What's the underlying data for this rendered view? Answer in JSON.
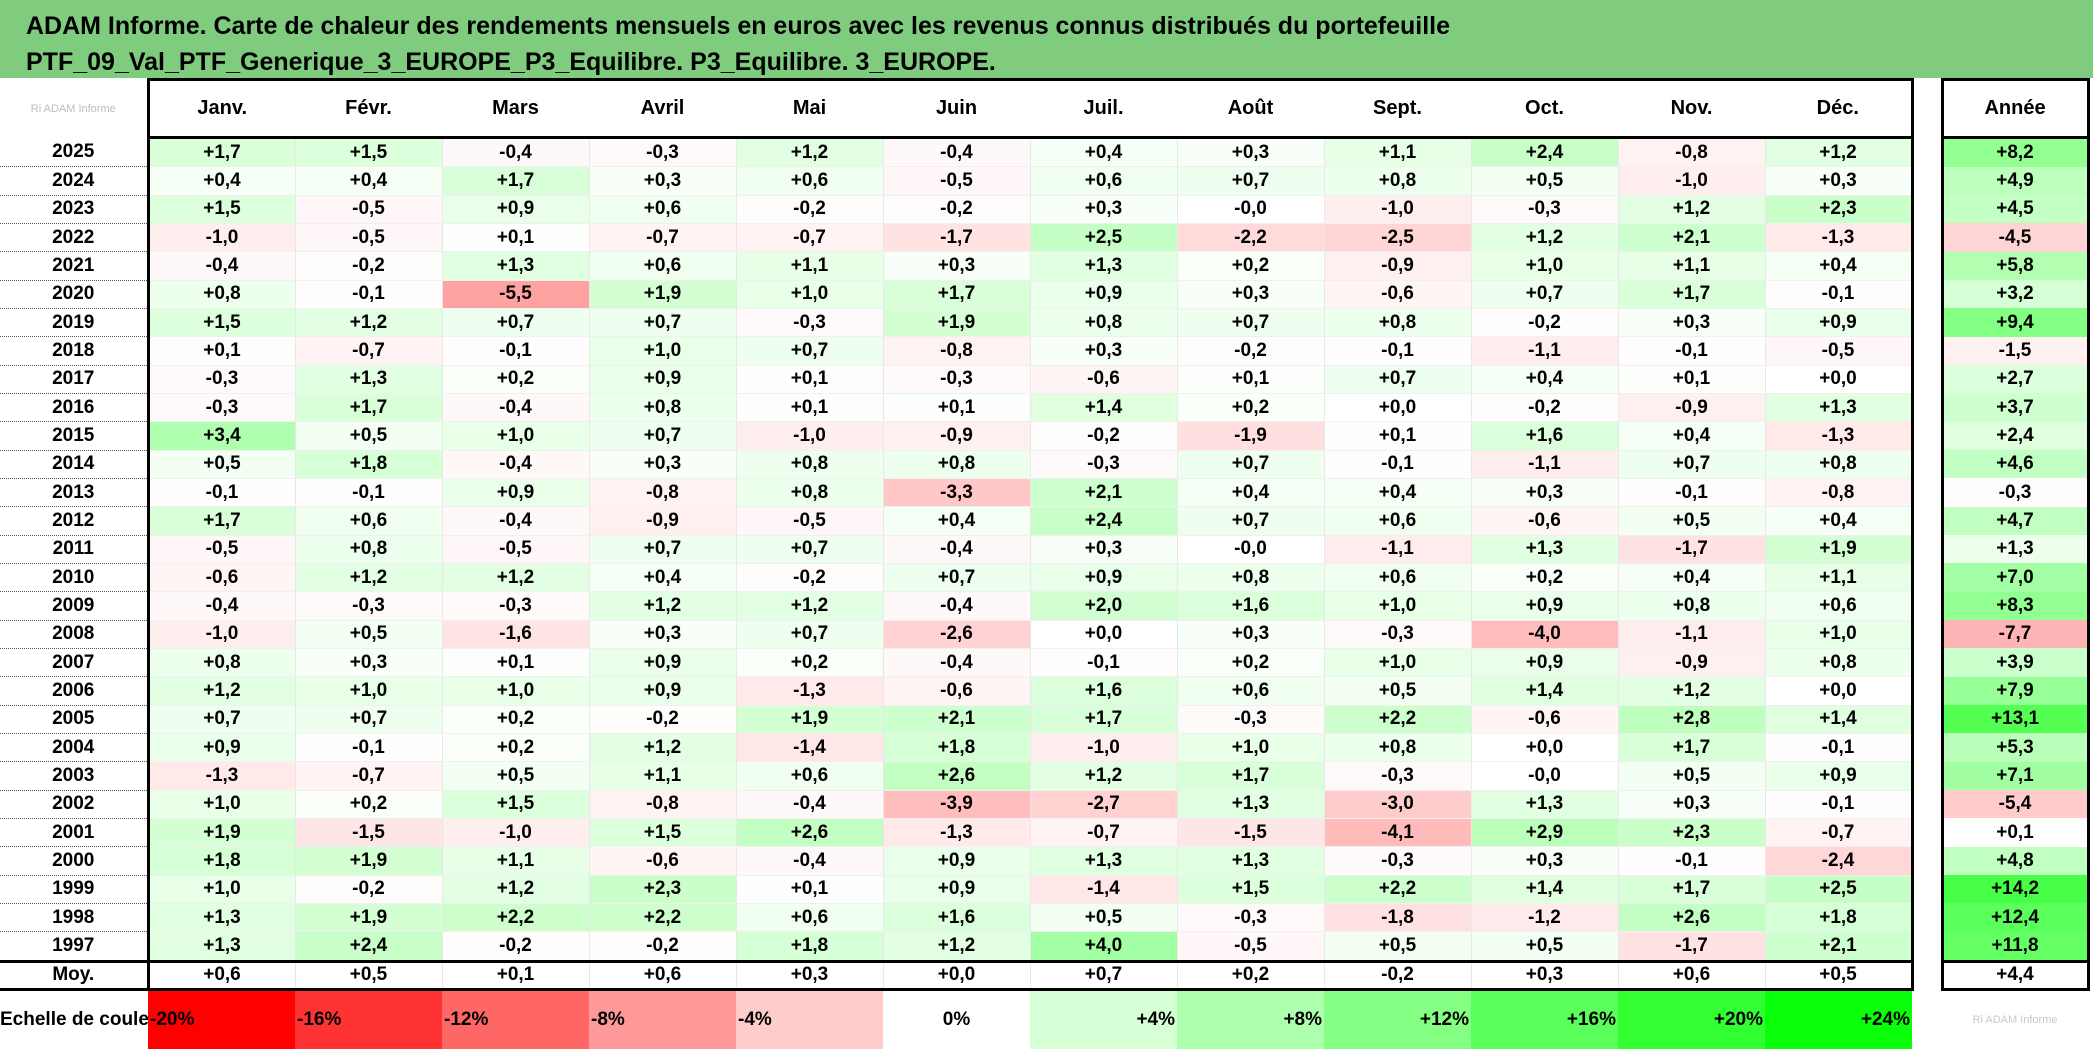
{
  "title_lines": [
    "ADAM Informe. Carte de chaleur des rendements mensuels en euros avec les revenus connus distribués du portefeuille",
    "PTF_09_Val_PTF_Generique_3_EUROPE_P3_Equilibre. P3_Equilibre. 3_EUROPE."
  ],
  "corner_text": "Ri ADAM Informe",
  "chart_data": {
    "type": "heatmap",
    "columns": [
      "Janv.",
      "Févr.",
      "Mars",
      "Avril",
      "Mai",
      "Juin",
      "Juil.",
      "Août",
      "Sept.",
      "Oct.",
      "Nov.",
      "Déc."
    ],
    "annual_label": "Année",
    "rows": [
      {
        "year": "2025",
        "values": [
          "+1,7",
          "+1,5",
          "-0,4",
          "-0,3",
          "+1,2",
          "-0,4",
          "+0,4",
          "+0,3",
          "+1,1",
          "+2,4",
          "-0,8",
          "+1,2"
        ],
        "annual": "+8,2"
      },
      {
        "year": "2024",
        "values": [
          "+0,4",
          "+0,4",
          "+1,7",
          "+0,3",
          "+0,6",
          "-0,5",
          "+0,6",
          "+0,7",
          "+0,8",
          "+0,5",
          "-1,0",
          "+0,3"
        ],
        "annual": "+4,9"
      },
      {
        "year": "2023",
        "values": [
          "+1,5",
          "-0,5",
          "+0,9",
          "+0,6",
          "-0,2",
          "-0,2",
          "+0,3",
          "-0,0",
          "-1,0",
          "-0,3",
          "+1,2",
          "+2,3"
        ],
        "annual": "+4,5"
      },
      {
        "year": "2022",
        "values": [
          "-1,0",
          "-0,5",
          "+0,1",
          "-0,7",
          "-0,7",
          "-1,7",
          "+2,5",
          "-2,2",
          "-2,5",
          "+1,2",
          "+2,1",
          "-1,3"
        ],
        "annual": "-4,5"
      },
      {
        "year": "2021",
        "values": [
          "-0,4",
          "-0,2",
          "+1,3",
          "+0,6",
          "+1,1",
          "+0,3",
          "+1,3",
          "+0,2",
          "-0,9",
          "+1,0",
          "+1,1",
          "+0,4"
        ],
        "annual": "+5,8"
      },
      {
        "year": "2020",
        "values": [
          "+0,8",
          "-0,1",
          "-5,5",
          "+1,9",
          "+1,0",
          "+1,7",
          "+0,9",
          "+0,3",
          "-0,6",
          "+0,7",
          "+1,7",
          "-0,1"
        ],
        "annual": "+3,2"
      },
      {
        "year": "2019",
        "values": [
          "+1,5",
          "+1,2",
          "+0,7",
          "+0,7",
          "-0,3",
          "+1,9",
          "+0,8",
          "+0,7",
          "+0,8",
          "-0,2",
          "+0,3",
          "+0,9"
        ],
        "annual": "+9,4"
      },
      {
        "year": "2018",
        "values": [
          "+0,1",
          "-0,7",
          "-0,1",
          "+1,0",
          "+0,7",
          "-0,8",
          "+0,3",
          "-0,2",
          "-0,1",
          "-1,1",
          "-0,1",
          "-0,5"
        ],
        "annual": "-1,5"
      },
      {
        "year": "2017",
        "values": [
          "-0,3",
          "+1,3",
          "+0,2",
          "+0,9",
          "+0,1",
          "-0,3",
          "-0,6",
          "+0,1",
          "+0,7",
          "+0,4",
          "+0,1",
          "+0,0"
        ],
        "annual": "+2,7"
      },
      {
        "year": "2016",
        "values": [
          "-0,3",
          "+1,7",
          "-0,4",
          "+0,8",
          "+0,1",
          "+0,1",
          "+1,4",
          "+0,2",
          "+0,0",
          "-0,2",
          "-0,9",
          "+1,3"
        ],
        "annual": "+3,7"
      },
      {
        "year": "2015",
        "values": [
          "+3,4",
          "+0,5",
          "+1,0",
          "+0,7",
          "-1,0",
          "-0,9",
          "-0,2",
          "-1,9",
          "+0,1",
          "+1,6",
          "+0,4",
          "-1,3"
        ],
        "annual": "+2,4"
      },
      {
        "year": "2014",
        "values": [
          "+0,5",
          "+1,8",
          "-0,4",
          "+0,3",
          "+0,8",
          "+0,8",
          "-0,3",
          "+0,7",
          "-0,1",
          "-1,1",
          "+0,7",
          "+0,8"
        ],
        "annual": "+4,6"
      },
      {
        "year": "2013",
        "values": [
          "-0,1",
          "-0,1",
          "+0,9",
          "-0,8",
          "+0,8",
          "-3,3",
          "+2,1",
          "+0,4",
          "+0,4",
          "+0,3",
          "-0,1",
          "-0,8"
        ],
        "annual": "-0,3"
      },
      {
        "year": "2012",
        "values": [
          "+1,7",
          "+0,6",
          "-0,4",
          "-0,9",
          "-0,5",
          "+0,4",
          "+2,4",
          "+0,7",
          "+0,6",
          "-0,6",
          "+0,5",
          "+0,4"
        ],
        "annual": "+4,7"
      },
      {
        "year": "2011",
        "values": [
          "-0,5",
          "+0,8",
          "-0,5",
          "+0,7",
          "+0,7",
          "-0,4",
          "+0,3",
          "-0,0",
          "-1,1",
          "+1,3",
          "-1,7",
          "+1,9"
        ],
        "annual": "+1,3"
      },
      {
        "year": "2010",
        "values": [
          "-0,6",
          "+1,2",
          "+1,2",
          "+0,4",
          "-0,2",
          "+0,7",
          "+0,9",
          "+0,8",
          "+0,6",
          "+0,2",
          "+0,4",
          "+1,1"
        ],
        "annual": "+7,0"
      },
      {
        "year": "2009",
        "values": [
          "-0,4",
          "-0,3",
          "-0,3",
          "+1,2",
          "+1,2",
          "-0,4",
          "+2,0",
          "+1,6",
          "+1,0",
          "+0,9",
          "+0,8",
          "+0,6"
        ],
        "annual": "+8,3"
      },
      {
        "year": "2008",
        "values": [
          "-1,0",
          "+0,5",
          "-1,6",
          "+0,3",
          "+0,7",
          "-2,6",
          "+0,0",
          "+0,3",
          "-0,3",
          "-4,0",
          "-1,1",
          "+1,0"
        ],
        "annual": "-7,7"
      },
      {
        "year": "2007",
        "values": [
          "+0,8",
          "+0,3",
          "+0,1",
          "+0,9",
          "+0,2",
          "-0,4",
          "-0,1",
          "+0,2",
          "+1,0",
          "+0,9",
          "-0,9",
          "+0,8"
        ],
        "annual": "+3,9"
      },
      {
        "year": "2006",
        "values": [
          "+1,2",
          "+1,0",
          "+1,0",
          "+0,9",
          "-1,3",
          "-0,6",
          "+1,6",
          "+0,6",
          "+0,5",
          "+1,4",
          "+1,2",
          "+0,0"
        ],
        "annual": "+7,9"
      },
      {
        "year": "2005",
        "values": [
          "+0,7",
          "+0,7",
          "+0,2",
          "-0,2",
          "+1,9",
          "+2,1",
          "+1,7",
          "-0,3",
          "+2,2",
          "-0,6",
          "+2,8",
          "+1,4"
        ],
        "annual": "+13,1"
      },
      {
        "year": "2004",
        "values": [
          "+0,9",
          "-0,1",
          "+0,2",
          "+1,2",
          "-1,4",
          "+1,8",
          "-1,0",
          "+1,0",
          "+0,8",
          "+0,0",
          "+1,7",
          "-0,1"
        ],
        "annual": "+5,3"
      },
      {
        "year": "2003",
        "values": [
          "-1,3",
          "-0,7",
          "+0,5",
          "+1,1",
          "+0,6",
          "+2,6",
          "+1,2",
          "+1,7",
          "-0,3",
          "-0,0",
          "+0,5",
          "+0,9"
        ],
        "annual": "+7,1"
      },
      {
        "year": "2002",
        "values": [
          "+1,0",
          "+0,2",
          "+1,5",
          "-0,8",
          "-0,4",
          "-3,9",
          "-2,7",
          "+1,3",
          "-3,0",
          "+1,3",
          "+0,3",
          "-0,1"
        ],
        "annual": "-5,4"
      },
      {
        "year": "2001",
        "values": [
          "+1,9",
          "-1,5",
          "-1,0",
          "+1,5",
          "+2,6",
          "-1,3",
          "-0,7",
          "-1,5",
          "-4,1",
          "+2,9",
          "+2,3",
          "-0,7"
        ],
        "annual": "+0,1"
      },
      {
        "year": "2000",
        "values": [
          "+1,8",
          "+1,9",
          "+1,1",
          "-0,6",
          "-0,4",
          "+0,9",
          "+1,3",
          "+1,3",
          "-0,3",
          "+0,3",
          "-0,1",
          "-2,4"
        ],
        "annual": "+4,8"
      },
      {
        "year": "1999",
        "values": [
          "+1,0",
          "-0,2",
          "+1,2",
          "+2,3",
          "+0,1",
          "+0,9",
          "-1,4",
          "+1,5",
          "+2,2",
          "+1,4",
          "+1,7",
          "+2,5"
        ],
        "annual": "+14,2"
      },
      {
        "year": "1998",
        "values": [
          "+1,3",
          "+1,9",
          "+2,2",
          "+2,2",
          "+0,6",
          "+1,6",
          "+0,5",
          "-0,3",
          "-1,8",
          "-1,2",
          "+2,6",
          "+1,8"
        ],
        "annual": "+12,4"
      },
      {
        "year": "1997",
        "values": [
          "+1,3",
          "+2,4",
          "-0,2",
          "-0,2",
          "+1,8",
          "+1,2",
          "+4,0",
          "-0,5",
          "+0,5",
          "+0,5",
          "-1,7",
          "+2,1"
        ],
        "annual": "+11,8"
      }
    ],
    "average": {
      "label": "Moy.",
      "values": [
        "+0,6",
        "+0,5",
        "+0,1",
        "+0,6",
        "+0,3",
        "+0,0",
        "+0,7",
        "+0,2",
        "-0,2",
        "+0,3",
        "+0,6",
        "+0,5"
      ],
      "annual": "+4,4"
    },
    "color_scale": {
      "label": "Echelle de couleur",
      "stops": [
        {
          "label": "-20%",
          "value": -20,
          "color": "#ff0000"
        },
        {
          "label": "-16%",
          "value": -16,
          "color": "#ff3333"
        },
        {
          "label": "-12%",
          "value": -12,
          "color": "#ff6666"
        },
        {
          "label": "-8%",
          "value": -8,
          "color": "#ff9999"
        },
        {
          "label": "-4%",
          "value": -4,
          "color": "#ffcccc"
        },
        {
          "label": "0%",
          "value": 0,
          "color": "#ffffff"
        },
        {
          "label": "+4%",
          "value": 4,
          "color": "#d6ffd6"
        },
        {
          "label": "+8%",
          "value": 8,
          "color": "#adffad"
        },
        {
          "label": "+12%",
          "value": 12,
          "color": "#84ff84"
        },
        {
          "label": "+16%",
          "value": 16,
          "color": "#5bff5b"
        },
        {
          "label": "+20%",
          "value": 20,
          "color": "#32ff32"
        },
        {
          "label": "+24%",
          "value": 24,
          "color": "#0aff0a"
        }
      ],
      "note": "Ri ADAM Informe"
    }
  }
}
